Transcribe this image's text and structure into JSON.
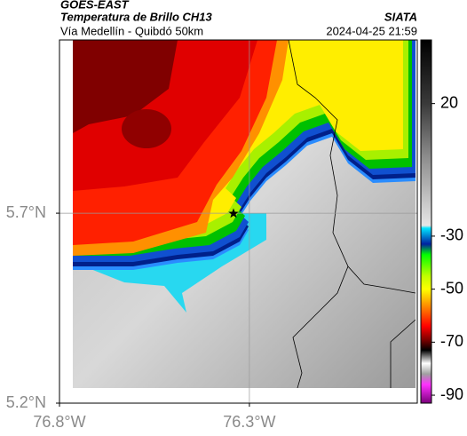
{
  "header": {
    "source": "GOES-EAST",
    "title": "Temperatura de Brillo CH13",
    "subtitle": "Vía Medellín - Quibdó 50km",
    "brand": "SIATA",
    "timestamp": "2024-04-25 21:59"
  },
  "map": {
    "xlim": [
      -76.8,
      -75.858
    ],
    "ylim": [
      5.2,
      6.156
    ],
    "xticks": [
      {
        "value": -76.8,
        "label": "76.8°W"
      },
      {
        "value": -76.3,
        "label": "76.3°W"
      }
    ],
    "yticks": [
      {
        "value": 5.7,
        "label": "5.7°N"
      },
      {
        "value": 5.2,
        "label": "5.2°N"
      }
    ],
    "grid": true
  },
  "colorbar": {
    "clim": [
      -93,
      44
    ],
    "ticks": [
      20,
      -30,
      -50,
      -70,
      -90
    ],
    "stops": [
      {
        "value": 44,
        "color": "#000000"
      },
      {
        "value": 20,
        "color": "#3a3a3a"
      },
      {
        "value": 0,
        "color": "#8c8c8c"
      },
      {
        "value": -26,
        "color": "#e6e6e6"
      },
      {
        "value": -27,
        "color": "#00e5ff"
      },
      {
        "value": -33,
        "color": "#0020a0"
      },
      {
        "value": -37,
        "color": "#00ff00"
      },
      {
        "value": -45,
        "color": "#c0ff00"
      },
      {
        "value": -50,
        "color": "#ffff00"
      },
      {
        "value": -57,
        "color": "#ff8000"
      },
      {
        "value": -64,
        "color": "#ff0000"
      },
      {
        "value": -69,
        "color": "#800000"
      },
      {
        "value": -73,
        "color": "#000000"
      },
      {
        "value": -78,
        "color": "#ffffff"
      },
      {
        "value": -82,
        "color": "#a0a0a0"
      },
      {
        "value": -86,
        "color": "#ff30ff"
      },
      {
        "value": -93,
        "color": "#7a007a"
      }
    ]
  }
}
